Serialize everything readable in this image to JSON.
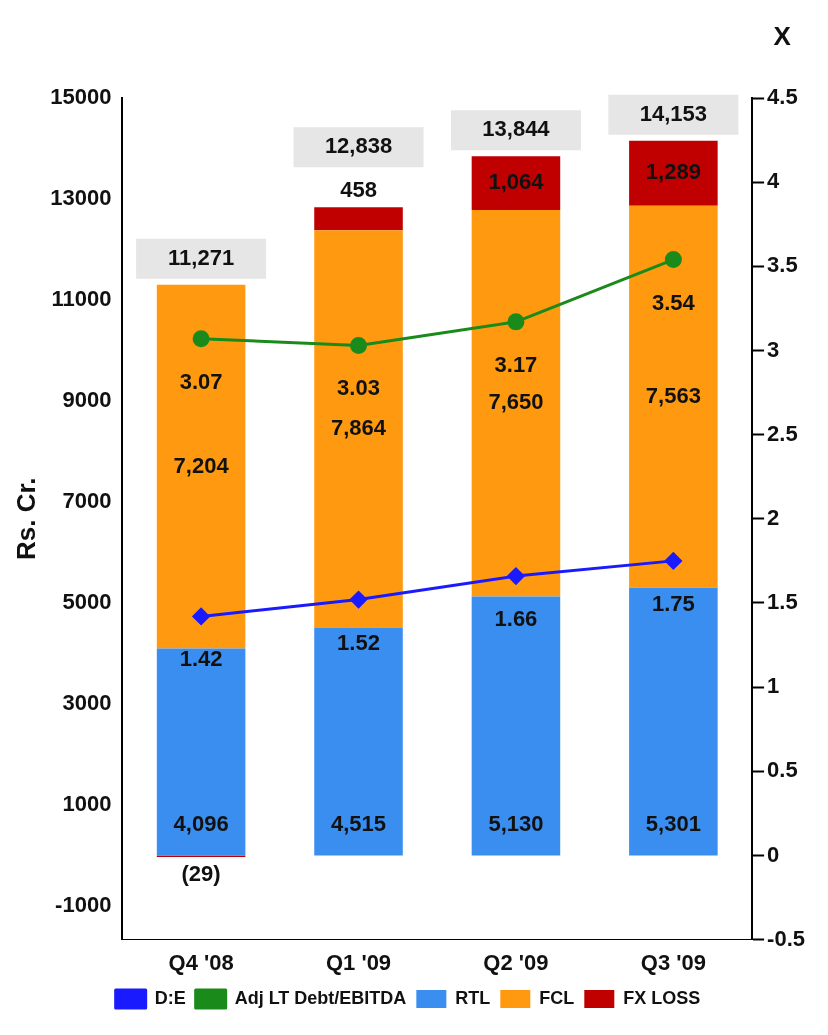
{
  "chart_data": {
    "type": "bar",
    "stacked": true,
    "categories": [
      "Q4 '08",
      "Q1 '09",
      "Q2 '09",
      "Q3 '09"
    ],
    "ylabel": "Rs. Cr.",
    "y2label": "X",
    "ylim": [
      -1667,
      15000
    ],
    "yticks": [
      -1000,
      1000,
      3000,
      5000,
      7000,
      9000,
      11000,
      13000,
      15000
    ],
    "y2lim": [
      -0.5,
      4.5
    ],
    "y2ticks": [
      -0.5,
      0,
      0.5,
      1,
      1.5,
      2,
      2.5,
      3,
      3.5,
      4,
      4.5
    ],
    "grid": false,
    "legend": "bottom",
    "series": [
      {
        "name": "RTL",
        "color": "#3a8ef0",
        "values": [
          4096,
          4515,
          5130,
          5301
        ],
        "value_labels": [
          "4,096",
          "4,515",
          "5,130",
          "5,301"
        ]
      },
      {
        "name": "FCL",
        "color": "#ff9a10",
        "values": [
          7204,
          7864,
          7650,
          7563
        ],
        "value_labels": [
          "7,204",
          "7,864",
          "7,650",
          "7,563"
        ]
      },
      {
        "name": "FX LOSS",
        "color": "#c00000",
        "values": [
          -29,
          458,
          1064,
          1289
        ],
        "value_labels": [
          "(29)",
          "458",
          "1,064",
          "1,289"
        ]
      },
      {
        "name": "D:E",
        "type": "line",
        "axis": "y2",
        "marker": "diamond",
        "color": "#1a1aff",
        "values": [
          1.42,
          1.52,
          1.66,
          1.75
        ],
        "value_labels": [
          "1.42",
          "1.52",
          "1.66",
          "1.75"
        ]
      },
      {
        "name": "Adj LT Debt/EBITDA",
        "type": "line",
        "axis": "y2",
        "marker": "circle",
        "color": "#1a8a1a",
        "values": [
          3.07,
          3.03,
          3.17,
          3.54
        ],
        "value_labels": [
          "3.07",
          "3.03",
          "3.17",
          "3.54"
        ]
      }
    ],
    "totals": [
      "11,271",
      "12,838",
      "13,844",
      "14,153"
    ]
  }
}
